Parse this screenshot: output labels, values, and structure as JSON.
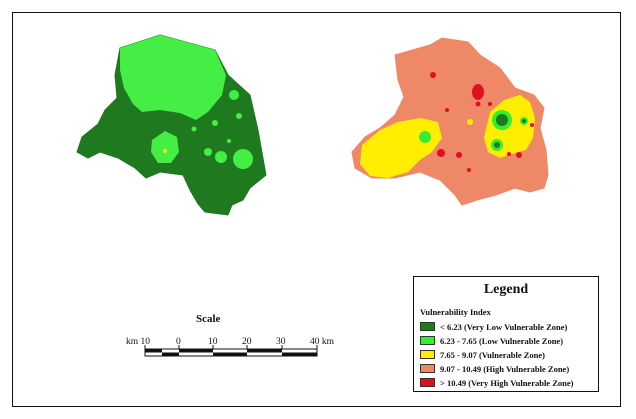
{
  "scale": {
    "title": "Scale",
    "ticks": [
      "km 10",
      "0",
      "10",
      "20",
      "30",
      "40 km"
    ]
  },
  "legend": {
    "title": "Legend",
    "subtitle": "Vulnerability Index",
    "items": [
      {
        "label": "< 6.23 (Very Low Vulnerable Zone)",
        "color": "#1f7a1f"
      },
      {
        "label": "6.23 - 7.65 (Low Vulnerable Zone)",
        "color": "#33ee33"
      },
      {
        "label": "7.65 - 9.07 (Vulnerable Zone)",
        "color": "#ffee00"
      },
      {
        "label": "9.07 - 10.49 (High Vulnerable Zone)",
        "color": "#ee8866"
      },
      {
        "label": "> 10.49 (Very High Vulnerable Zone)",
        "color": "#e01020"
      }
    ]
  }
}
